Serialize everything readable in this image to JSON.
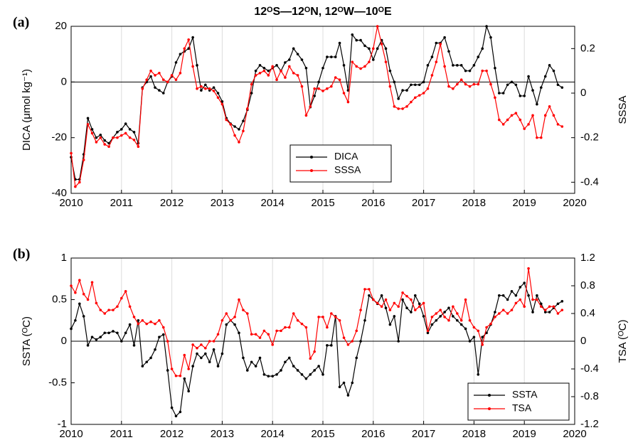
{
  "chart_data": [
    {
      "type": "line",
      "panel": "(a)",
      "title": "12ᴼS—12ᴼN, 12ᴼW—10ᴼE",
      "ylabel": "DICA (μmol kg⁻¹)",
      "y2label": "SSSA",
      "xlim": [
        2010,
        2020
      ],
      "xticks": [
        2010,
        2011,
        2012,
        2013,
        2014,
        2015,
        2016,
        2017,
        2018,
        2019,
        2020
      ],
      "ylim": [
        -40,
        20
      ],
      "yticks": [
        -40,
        -20,
        0,
        20
      ],
      "y2lim": [
        -0.45,
        0.3
      ],
      "y2ticks": [
        -0.4,
        -0.2,
        0,
        0.2
      ],
      "xgrid": true,
      "legend": "lower center",
      "x": [
        2010,
        2010.083,
        2010.167,
        2010.25,
        2010.333,
        2010.417,
        2010.5,
        2010.583,
        2010.667,
        2010.75,
        2010.833,
        2010.917,
        2011,
        2011.083,
        2011.167,
        2011.25,
        2011.333,
        2011.417,
        2011.5,
        2011.583,
        2011.667,
        2011.75,
        2011.833,
        2011.917,
        2012,
        2012.083,
        2012.167,
        2012.25,
        2012.333,
        2012.417,
        2012.5,
        2012.583,
        2012.667,
        2012.75,
        2012.833,
        2012.917,
        2013,
        2013.083,
        2013.167,
        2013.25,
        2013.333,
        2013.417,
        2013.5,
        2013.583,
        2013.667,
        2013.75,
        2013.833,
        2013.917,
        2014,
        2014.083,
        2014.167,
        2014.25,
        2014.333,
        2014.417,
        2014.5,
        2014.583,
        2014.667,
        2014.75,
        2014.833,
        2014.917,
        2015,
        2015.083,
        2015.167,
        2015.25,
        2015.333,
        2015.417,
        2015.5,
        2015.583,
        2015.667,
        2015.75,
        2015.833,
        2015.917,
        2016,
        2016.083,
        2016.167,
        2016.25,
        2016.333,
        2016.417,
        2016.5,
        2016.583,
        2016.667,
        2016.75,
        2016.833,
        2016.917,
        2017,
        2017.083,
        2017.167,
        2017.25,
        2017.333,
        2017.417,
        2017.5,
        2017.583,
        2017.667,
        2017.75,
        2017.833,
        2017.917,
        2018,
        2018.083,
        2018.167,
        2018.25,
        2018.333,
        2018.417,
        2018.5,
        2018.583,
        2018.667,
        2018.75,
        2018.833,
        2018.917,
        2019,
        2019.083,
        2019.167,
        2019.25,
        2019.333,
        2019.417,
        2019.5,
        2019.583,
        2019.667,
        2019.75
      ],
      "series": [
        {
          "name": "DICA",
          "color": "#000000",
          "values": [
            -27,
            -35,
            -35,
            -26,
            -13,
            -17,
            -20,
            -19,
            -21,
            -22,
            -20,
            -18,
            -17,
            -15,
            -17,
            -18,
            -22,
            -2,
            0,
            2,
            -2,
            -3,
            -4,
            0,
            2,
            7,
            10,
            11,
            12,
            16,
            6,
            -3,
            -1,
            -3,
            -2,
            -4,
            -7,
            -13,
            -15,
            -16,
            -17,
            -14,
            -10,
            -4,
            4,
            6,
            5,
            4,
            5,
            6,
            4,
            7,
            8,
            12,
            10,
            8,
            5,
            -9,
            -5,
            0,
            5,
            9,
            9,
            9,
            14,
            6,
            -3,
            17,
            15,
            15,
            13,
            12,
            8,
            12,
            15,
            12,
            4,
            0,
            -6,
            -3,
            -3,
            -1,
            -1,
            -1,
            0,
            6,
            9,
            14,
            14,
            16,
            11,
            6,
            6,
            6,
            4,
            4,
            6,
            9,
            12,
            20,
            16,
            5,
            -4,
            -4,
            -1,
            0,
            -1,
            -5,
            -5,
            2,
            -3,
            -8,
            -2,
            2,
            6,
            4,
            -1,
            -2
          ]
        },
        {
          "name": "SSSA",
          "color": "#ff0000",
          "axis": "y2",
          "values": [
            -0.27,
            -0.42,
            -0.4,
            -0.3,
            -0.14,
            -0.18,
            -0.22,
            -0.2,
            -0.23,
            -0.24,
            -0.2,
            -0.2,
            -0.19,
            -0.18,
            -0.2,
            -0.21,
            -0.24,
            0.02,
            0.06,
            0.1,
            0.08,
            0.09,
            0.06,
            0.05,
            0.08,
            0.06,
            0.09,
            0.2,
            0.24,
            0.12,
            0.02,
            0.03,
            0.02,
            0.02,
            0.01,
            -0.02,
            -0.05,
            -0.12,
            -0.14,
            -0.19,
            -0.22,
            -0.17,
            -0.07,
            0.04,
            0.08,
            0.09,
            0.1,
            0.08,
            0.12,
            0.06,
            0.1,
            0.07,
            0.12,
            0.09,
            0.08,
            0.03,
            -0.1,
            -0.06,
            0.02,
            0.02,
            0.01,
            0.02,
            0.03,
            0.07,
            0.06,
            0,
            -0.04,
            0.14,
            0.12,
            0.11,
            0.12,
            0.14,
            0.2,
            0.3,
            0.22,
            0.14,
            0.03,
            -0.06,
            -0.07,
            -0.07,
            -0.06,
            -0.04,
            -0.02,
            -0.01,
            0,
            0.02,
            0.08,
            0.14,
            0.22,
            0.12,
            0.03,
            0.02,
            0.04,
            0.06,
            0.04,
            0.03,
            0.04,
            0.04,
            0.1,
            0.1,
            0.04,
            -0.02,
            -0.12,
            -0.14,
            -0.12,
            -0.1,
            -0.09,
            -0.12,
            -0.16,
            -0.14,
            -0.1,
            -0.2,
            -0.2,
            -0.1,
            -0.06,
            -0.1,
            -0.14,
            -0.15
          ]
        }
      ]
    },
    {
      "type": "line",
      "panel": "(b)",
      "ylabel": "SSTA (ᴼC)",
      "y2label": "TSA (ᴼC)",
      "xlim": [
        2010,
        2020
      ],
      "xticks": [
        2010,
        2011,
        2012,
        2013,
        2014,
        2015,
        2016,
        2017,
        2018,
        2019,
        2020
      ],
      "ylim": [
        -1,
        1
      ],
      "yticks": [
        -1,
        -0.5,
        0,
        0.5,
        1
      ],
      "y2lim": [
        -1.2,
        1.2
      ],
      "y2ticks": [
        -1.2,
        -0.8,
        -0.4,
        0,
        0.4,
        0.8,
        1.2
      ],
      "xgrid": true,
      "legend": "lower right",
      "x": [
        2010,
        2010.083,
        2010.167,
        2010.25,
        2010.333,
        2010.417,
        2010.5,
        2010.583,
        2010.667,
        2010.75,
        2010.833,
        2010.917,
        2011,
        2011.083,
        2011.167,
        2011.25,
        2011.333,
        2011.417,
        2011.5,
        2011.583,
        2011.667,
        2011.75,
        2011.833,
        2011.917,
        2012,
        2012.083,
        2012.167,
        2012.25,
        2012.333,
        2012.417,
        2012.5,
        2012.583,
        2012.667,
        2012.75,
        2012.833,
        2012.917,
        2013,
        2013.083,
        2013.167,
        2013.25,
        2013.333,
        2013.417,
        2013.5,
        2013.583,
        2013.667,
        2013.75,
        2013.833,
        2013.917,
        2014,
        2014.083,
        2014.167,
        2014.25,
        2014.333,
        2014.417,
        2014.5,
        2014.583,
        2014.667,
        2014.75,
        2014.833,
        2014.917,
        2015,
        2015.083,
        2015.167,
        2015.25,
        2015.333,
        2015.417,
        2015.5,
        2015.583,
        2015.667,
        2015.75,
        2015.833,
        2015.917,
        2016,
        2016.083,
        2016.167,
        2016.25,
        2016.333,
        2016.417,
        2016.5,
        2016.583,
        2016.667,
        2016.75,
        2016.833,
        2016.917,
        2017,
        2017.083,
        2017.167,
        2017.25,
        2017.333,
        2017.417,
        2017.5,
        2017.583,
        2017.667,
        2017.75,
        2017.833,
        2017.917,
        2018,
        2018.083,
        2018.167,
        2018.25,
        2018.333,
        2018.417,
        2018.5,
        2018.583,
        2018.667,
        2018.75,
        2018.833,
        2018.917,
        2019,
        2019.083,
        2019.167,
        2019.25,
        2019.333,
        2019.417,
        2019.5,
        2019.583,
        2019.667,
        2019.75
      ],
      "series": [
        {
          "name": "SSTA",
          "color": "#000000",
          "values": [
            0.15,
            0.25,
            0.45,
            0.3,
            -0.05,
            0.05,
            0.02,
            0.05,
            0.1,
            0.1,
            0.12,
            0.1,
            0,
            0.1,
            0.2,
            -0.05,
            0.25,
            -0.3,
            -0.25,
            -0.2,
            -0.1,
            0.05,
            0.08,
            -0.35,
            -0.8,
            -0.9,
            -0.85,
            -0.45,
            -0.6,
            -0.3,
            -0.15,
            -0.2,
            -0.15,
            -0.25,
            -0.1,
            -0.3,
            -0.15,
            0.2,
            0.25,
            0.2,
            0.1,
            -0.2,
            -0.35,
            -0.25,
            -0.3,
            -0.2,
            -0.4,
            -0.42,
            -0.42,
            -0.4,
            -0.35,
            -0.25,
            -0.2,
            -0.3,
            -0.35,
            -0.4,
            -0.45,
            -0.4,
            -0.35,
            -0.3,
            -0.4,
            -0.05,
            -0.05,
            0.3,
            -0.55,
            -0.5,
            -0.65,
            -0.5,
            -0.2,
            0,
            0.25,
            0.55,
            0.5,
            0.45,
            0.55,
            0.4,
            0.2,
            0.3,
            0,
            0.5,
            0.4,
            0.35,
            0.55,
            0.45,
            0.3,
            0.1,
            0.2,
            0.25,
            0.3,
            0.35,
            0.4,
            0.3,
            0.25,
            0.2,
            0.15,
            0,
            0.05,
            -0.4,
            0.05,
            0.1,
            0.2,
            0.35,
            0.55,
            0.55,
            0.5,
            0.6,
            0.55,
            0.65,
            0.7,
            0.55,
            0.35,
            0.55,
            0.45,
            0.35,
            0.35,
            0.4,
            0.45,
            0.48
          ]
        },
        {
          "name": "TSA",
          "color": "#ff0000",
          "axis": "y2",
          "values": [
            0.8,
            0.7,
            0.88,
            0.68,
            0.6,
            0.85,
            0.55,
            0.45,
            0.4,
            0.45,
            0.45,
            0.5,
            0.62,
            0.72,
            0.5,
            0.35,
            0.25,
            0.3,
            0.25,
            0.28,
            0.25,
            0.3,
            0.2,
            0,
            -0.4,
            -0.5,
            -0.5,
            -0.2,
            -0.4,
            -0.05,
            -0.1,
            -0.05,
            -0.1,
            0,
            0,
            0.1,
            0.3,
            0.4,
            0.3,
            0.35,
            0.6,
            0.45,
            0.4,
            0.1,
            0.1,
            0.05,
            0.15,
            0.1,
            -0.05,
            0.15,
            0.15,
            0.2,
            0.2,
            0.4,
            0.3,
            0.25,
            0.2,
            -0.25,
            -0.15,
            0.35,
            0.35,
            0.2,
            0.4,
            0.35,
            0.3,
            0.05,
            -0.05,
            0,
            0.15,
            0.45,
            0.75,
            0.75,
            0.6,
            0.55,
            0.5,
            0.6,
            0.45,
            0.55,
            0.5,
            0.7,
            0.65,
            0.6,
            0.45,
            0.5,
            0.55,
            0.15,
            0.35,
            0.4,
            0.45,
            0.35,
            0.3,
            0.5,
            0.4,
            0.3,
            0.6,
            0.3,
            0.2,
            0.15,
            -0.05,
            0.2,
            0.25,
            0.35,
            0.4,
            0.45,
            0.4,
            0.45,
            0.55,
            0.6,
            0.5,
            1.05,
            0.6,
            0.6,
            0.5,
            0.45,
            0.5,
            0.5,
            0.4,
            0.45
          ]
        }
      ]
    }
  ]
}
